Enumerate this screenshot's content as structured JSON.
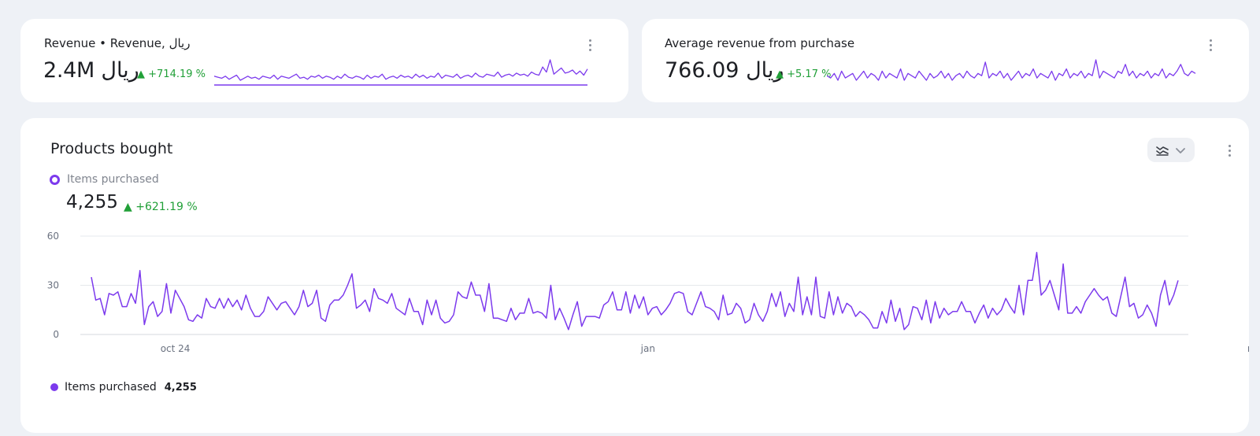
{
  "cards": {
    "revenue": {
      "title": "Revenue • Revenue, ریال",
      "value": "2.4M ریال",
      "delta": "▲ +714.19 %"
    },
    "avg_revenue": {
      "title": "Average revenue from purchase",
      "value": "766.09 ریال",
      "delta": "▲ +5.17 %"
    }
  },
  "products": {
    "title": "Products bought",
    "metric_label": "Items purchased",
    "metric_value": "4,255",
    "metric_delta": "▲ +621.19 %",
    "legend_label": "Items purchased",
    "legend_value": "4,255"
  },
  "colors": {
    "accent": "#7c3aed",
    "positive": "#21a038",
    "grid": "#e6e8ec",
    "axis_text": "#6b7280"
  },
  "icons": {
    "menu": "kebab-vertical",
    "chart_type": "line-chart-icon",
    "dropdown": "chevron-down-icon"
  },
  "chart_data": {
    "type": "line",
    "series": [
      {
        "name": "Items purchased",
        "values": [
          35,
          21,
          22,
          12,
          25,
          24,
          26,
          17,
          17,
          25,
          19,
          39,
          6,
          17,
          20,
          11,
          14,
          31,
          13,
          27,
          22,
          17,
          9,
          8,
          12,
          10,
          22,
          17,
          16,
          22,
          16,
          22,
          17,
          21,
          15,
          24,
          16,
          11,
          11,
          14,
          23,
          19,
          15,
          19,
          20,
          16,
          12,
          17,
          27,
          17,
          19,
          27,
          10,
          8,
          18,
          21,
          21,
          24,
          30,
          37,
          16,
          18,
          21,
          14,
          28,
          22,
          21,
          19,
          25,
          16,
          14,
          12,
          22,
          14,
          14,
          6,
          21,
          12,
          21,
          10,
          7,
          8,
          12,
          26,
          23,
          22,
          32,
          24,
          24,
          14,
          31,
          10,
          10,
          9,
          8,
          16,
          9,
          13,
          13,
          22,
          13,
          14,
          13,
          10,
          30,
          9,
          16,
          10,
          3,
          12,
          20,
          5,
          11,
          11,
          11,
          10,
          18,
          20,
          26,
          15,
          15,
          26,
          13,
          24,
          16,
          23,
          12,
          16,
          17,
          12,
          15,
          19,
          25,
          26,
          25,
          14,
          12,
          19,
          26,
          17,
          16,
          14,
          9,
          24,
          12,
          13,
          19,
          16,
          7,
          9,
          19,
          12,
          8,
          14,
          25,
          17,
          26,
          11,
          19,
          14,
          35,
          12,
          23,
          12,
          35,
          11,
          10,
          26,
          12,
          23,
          13,
          19,
          17,
          11,
          14,
          12,
          9,
          4,
          4,
          14,
          7,
          21,
          8,
          16,
          3,
          6,
          17,
          16,
          9,
          21,
          7,
          20,
          10,
          16,
          12,
          14,
          14,
          20,
          14,
          14,
          7,
          13,
          18,
          10,
          16,
          12,
          15,
          22,
          17,
          13,
          30,
          12,
          33,
          33,
          50,
          24,
          27,
          33,
          24,
          15,
          43,
          13,
          13,
          17,
          13,
          20,
          24,
          28,
          24,
          21,
          23,
          13,
          11,
          23,
          35,
          17,
          19,
          10,
          12,
          18,
          13,
          5,
          24,
          33,
          18,
          24,
          33
        ]
      }
    ],
    "x_ticks": [
      "oct 24",
      "jan",
      "may"
    ],
    "y_ticks": [
      0,
      30,
      60
    ],
    "ylim": [
      0,
      60
    ],
    "grid": true,
    "legend": "bottom-left",
    "sparklines": {
      "revenue": [
        10,
        9,
        8,
        10,
        7,
        9,
        11,
        6,
        8,
        10,
        8,
        9,
        7,
        10,
        9,
        8,
        11,
        7,
        10,
        9,
        8,
        10,
        12,
        8,
        9,
        7,
        10,
        9,
        11,
        8,
        10,
        9,
        7,
        10,
        8,
        12,
        9,
        8,
        10,
        9,
        7,
        11,
        8,
        10,
        9,
        12,
        7,
        9,
        10,
        8,
        11,
        9,
        10,
        8,
        12,
        9,
        11,
        8,
        10,
        9,
        13,
        8,
        11,
        10,
        9,
        12,
        8,
        10,
        11,
        9,
        13,
        10,
        9,
        12,
        11,
        10,
        14,
        9,
        11,
        12,
        10,
        13,
        11,
        12,
        10,
        14,
        12,
        11,
        19,
        14,
        26,
        12,
        15,
        18,
        13,
        14,
        16,
        12,
        15,
        11,
        17
      ],
      "avg_revenue": [
        13,
        12,
        14,
        11,
        15,
        12,
        13,
        14,
        11,
        13,
        15,
        12,
        14,
        13,
        11,
        15,
        12,
        14,
        13,
        12,
        16,
        11,
        14,
        13,
        12,
        15,
        13,
        11,
        14,
        12,
        13,
        15,
        12,
        14,
        11,
        13,
        14,
        12,
        15,
        13,
        12,
        14,
        13,
        19,
        12,
        14,
        13,
        15,
        12,
        14,
        11,
        13,
        15,
        12,
        14,
        13,
        16,
        12,
        14,
        13,
        12,
        15,
        11,
        14,
        13,
        16,
        12,
        14,
        13,
        15,
        12,
        14,
        13,
        20,
        12,
        15,
        14,
        13,
        12,
        15,
        14,
        18,
        13,
        15,
        12,
        14,
        13,
        15,
        12,
        14,
        13,
        16,
        12,
        14,
        13,
        15,
        18,
        14,
        13,
        15,
        14
      ]
    }
  }
}
